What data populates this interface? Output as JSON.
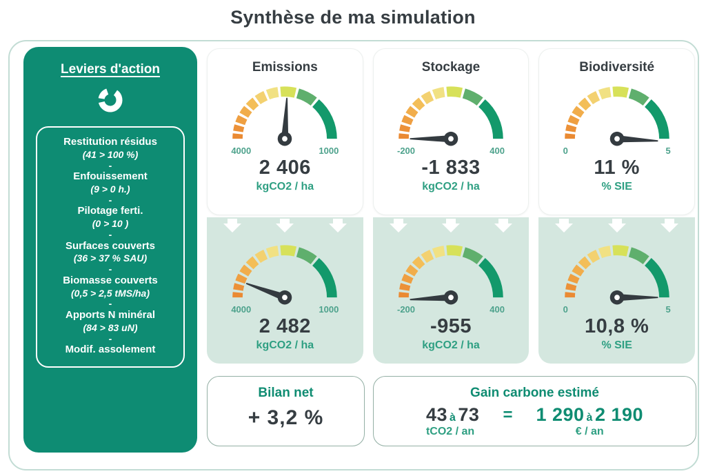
{
  "title": "Synthèse de ma simulation",
  "colors": {
    "sidebar_green": "#0E8C73",
    "accent_green": "#0F8C72",
    "unit_green": "#2E9F82",
    "tick_green": "#4DA28C",
    "dark_text": "#363D42",
    "mint_panel": "#D4E7DF",
    "outer_border": "#C2DCD4",
    "needle": "#343B40"
  },
  "sidebar": {
    "title": "Leviers d'action",
    "icon": "donut-chart-icon",
    "items": [
      {
        "name": "Restitution résidus",
        "detail": "(41 > 100 %)",
        "sep": "-"
      },
      {
        "name": "Enfouissement",
        "detail": "(9 > 0 h.)",
        "sep": "-"
      },
      {
        "name": "Pilotage ferti.",
        "detail": "(0 > 10 )",
        "sep": "-"
      },
      {
        "name": "Surfaces couverts",
        "detail": "(36 > 37 % SAU)",
        "sep": "-"
      },
      {
        "name": "Biomasse couverts",
        "detail": "(0,5 > 2,5 tMS/ha)",
        "sep": "-"
      },
      {
        "name": "Apports N minéral",
        "detail": "(84 > 83 uN)",
        "sep": "-"
      },
      {
        "name": "Modif. assolement",
        "detail": "",
        "sep": ""
      }
    ]
  },
  "columns": [
    {
      "title": "Emissions",
      "before": {
        "min": "4000",
        "max": "1000",
        "value": "2 406",
        "unit": "kgCO2 / ha"
      },
      "after": {
        "min": "4000",
        "max": "1000",
        "value": "2 482",
        "unit": "kgCO2 / ha"
      }
    },
    {
      "title": "Stockage",
      "before": {
        "min": "-200",
        "max": "400",
        "value": "-1 833",
        "unit": "kgCO2 / ha"
      },
      "after": {
        "min": "-200",
        "max": "400",
        "value": "-955",
        "unit": "kgCO2 / ha"
      }
    },
    {
      "title": "Biodiversité",
      "before": {
        "min": "0",
        "max": "5",
        "value": "11 %",
        "unit": "% SIE"
      },
      "after": {
        "min": "0",
        "max": "5",
        "value": "10,8 %",
        "unit": "% SIE"
      }
    }
  ],
  "chart_data": {
    "type": "gauge",
    "description": "Six semicircular segmented gauges (before simulation on white cards, after simulation on mint panels). needle_deg: 0 = pointing at left/min end, 90 = vertical, 180 = pointing at right/max end.",
    "segments": [
      [
        0,
        6,
        "#EA8A33"
      ],
      [
        9,
        16,
        "#EC9138"
      ],
      [
        19,
        27,
        "#EF9F41"
      ],
      [
        30,
        39,
        "#F1AD4B"
      ],
      [
        42,
        52,
        "#F3BE58"
      ],
      [
        55,
        66,
        "#F3D170"
      ],
      [
        69,
        82,
        "#F1E183"
      ],
      [
        85,
        103,
        "#D7E159"
      ],
      [
        106,
        128,
        "#5FAF6D"
      ],
      [
        131,
        180,
        "#13996B"
      ]
    ],
    "gauges": [
      {
        "label": "Emissions avant",
        "min": 4000,
        "max": 1000,
        "value": 2406,
        "unit": "kgCO2/ha",
        "needle_deg": 93
      },
      {
        "label": "Emissions après",
        "min": 4000,
        "max": 1000,
        "value": 2482,
        "unit": "kgCO2/ha",
        "needle_deg": 20
      },
      {
        "label": "Stockage avant",
        "min": -200,
        "max": 400,
        "value": -1833,
        "unit": "kgCO2/ha",
        "needle_deg": 0
      },
      {
        "label": "Stockage après",
        "min": -200,
        "max": 400,
        "value": -955,
        "unit": "kgCO2/ha",
        "needle_deg": -3
      },
      {
        "label": "Biodiversité avant",
        "min": 0,
        "max": 5,
        "value": 11,
        "unit": "% SIE",
        "needle_deg": 183
      },
      {
        "label": "Biodiversité après",
        "min": 0,
        "max": 5,
        "value": 10.8,
        "unit": "% SIE",
        "needle_deg": 180
      }
    ]
  },
  "summary": {
    "bilan": {
      "title": "Bilan net",
      "value": "+ 3,2 %"
    },
    "gain": {
      "title": "Gain carbone estimé",
      "tco2": {
        "from": "43",
        "sep": "à",
        "to": "73",
        "unit": "tCO2 / an"
      },
      "equals": "=",
      "euro": {
        "from": "1 290",
        "sep": "à",
        "to": "2 190",
        "unit": "€ / an"
      }
    }
  }
}
